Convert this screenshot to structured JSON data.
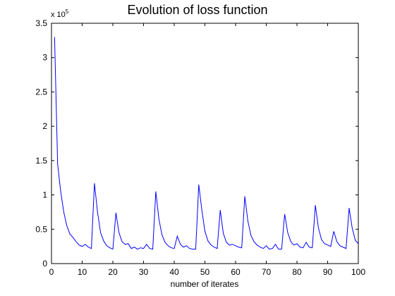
{
  "chart_data": {
    "type": "line",
    "title": "Evolution of loss function",
    "xlabel": "number of iterates",
    "ylabel": "",
    "y_multiplier_label": "x 10",
    "y_multiplier_exponent": "5",
    "xlim": [
      0,
      100
    ],
    "ylim": [
      0,
      3.5
    ],
    "xticks": [
      "0",
      "10",
      "20",
      "30",
      "40",
      "50",
      "60",
      "70",
      "80",
      "90",
      "100"
    ],
    "yticks": [
      "0",
      "0.5",
      "1",
      "1.5",
      "2",
      "2.5",
      "3",
      "3.5"
    ],
    "grid": false,
    "series": [
      {
        "color": "#0000ff",
        "x": [
          1,
          2,
          3,
          4,
          5,
          6,
          7,
          8,
          9,
          10,
          11,
          12,
          13,
          14,
          15,
          16,
          17,
          18,
          19,
          20,
          21,
          22,
          23,
          24,
          25,
          26,
          27,
          28,
          29,
          30,
          31,
          32,
          33,
          34,
          35,
          36,
          37,
          38,
          39,
          40,
          41,
          42,
          43,
          44,
          45,
          46,
          47,
          48,
          49,
          50,
          51,
          52,
          53,
          54,
          55,
          56,
          57,
          58,
          59,
          60,
          61,
          62,
          63,
          64,
          65,
          66,
          67,
          68,
          69,
          70,
          71,
          72,
          73,
          74,
          75,
          76,
          77,
          78,
          79,
          80,
          81,
          82,
          83,
          84,
          85,
          86,
          87,
          88,
          89,
          90,
          91,
          92,
          93,
          94,
          95,
          96,
          97,
          98,
          99,
          100
        ],
        "values": [
          3.3,
          1.45,
          1.05,
          0.75,
          0.55,
          0.43,
          0.38,
          0.32,
          0.27,
          0.25,
          0.28,
          0.24,
          0.22,
          1.17,
          0.75,
          0.45,
          0.33,
          0.26,
          0.23,
          0.21,
          0.74,
          0.45,
          0.32,
          0.28,
          0.29,
          0.22,
          0.24,
          0.21,
          0.23,
          0.22,
          0.28,
          0.22,
          0.21,
          1.05,
          0.65,
          0.42,
          0.31,
          0.26,
          0.23,
          0.22,
          0.4,
          0.28,
          0.24,
          0.26,
          0.22,
          0.21,
          0.21,
          1.15,
          0.78,
          0.47,
          0.33,
          0.27,
          0.24,
          0.22,
          0.78,
          0.44,
          0.31,
          0.27,
          0.28,
          0.26,
          0.24,
          0.23,
          0.98,
          0.62,
          0.41,
          0.32,
          0.27,
          0.24,
          0.22,
          0.26,
          0.21,
          0.22,
          0.28,
          0.21,
          0.21,
          0.72,
          0.45,
          0.32,
          0.27,
          0.29,
          0.24,
          0.23,
          0.31,
          0.24,
          0.23,
          0.85,
          0.52,
          0.35,
          0.29,
          0.27,
          0.25,
          0.47,
          0.32,
          0.26,
          0.24,
          0.22,
          0.81,
          0.52,
          0.34,
          0.29
        ]
      }
    ]
  }
}
